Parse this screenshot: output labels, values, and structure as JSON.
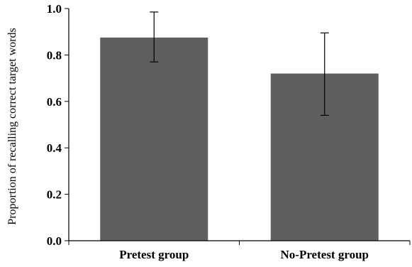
{
  "chart_data": {
    "type": "bar",
    "title": "",
    "xlabel": "",
    "ylabel": "Proportion of recalling correct target words",
    "categories": [
      "Pretest group",
      "No-Pretest group"
    ],
    "values": [
      0.875,
      0.72
    ],
    "error_bars": [
      {
        "low": 0.77,
        "high": 0.985
      },
      {
        "low": 0.54,
        "high": 0.895
      }
    ],
    "ylim": [
      0,
      1.0
    ],
    "yticks": [
      "0.0",
      "0.2",
      "0.4",
      "0.6",
      "0.8",
      "1.0"
    ],
    "grid": false,
    "legend": "none",
    "bar_color": "#5f5f5f"
  }
}
